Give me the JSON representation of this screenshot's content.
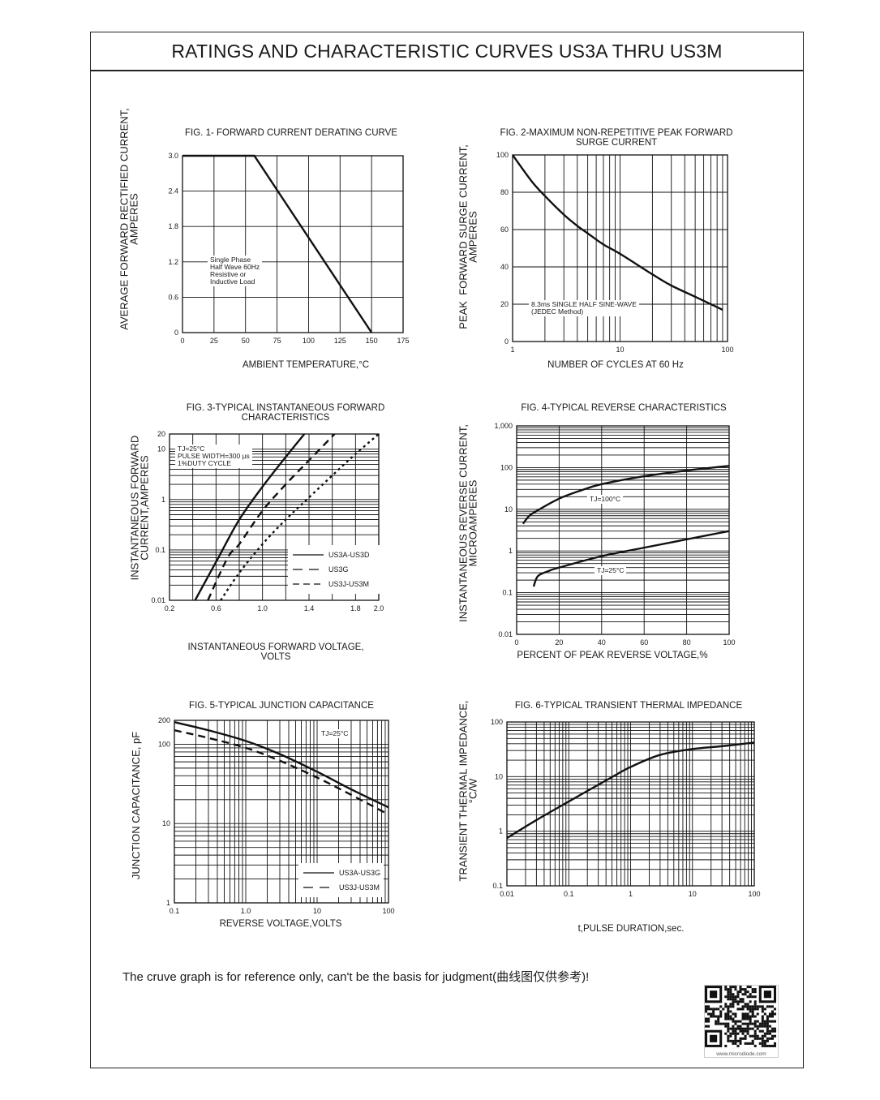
{
  "page": {
    "title": "RATINGS AND CHARACTERISTIC CURVES US3A THRU US3M",
    "footnote": "The cruve graph is for reference only, can't be the basis for judgment(曲线图仅供参考)!",
    "qr_url": "www.microdiode.com"
  },
  "chart_data": [
    {
      "type": "line",
      "title": "FIG. 1- FORWARD CURRENT DERATING CURVE",
      "xlabel": "AMBIENT TEMPERATURE,°C",
      "ylabel": "AVERAGE FORWARD RECTIFIED CURRENT,\nAMPERES",
      "xscale": "linear",
      "yscale": "linear",
      "xlim": [
        0,
        175
      ],
      "ylim": [
        0,
        3.0
      ],
      "xgrid_step": 25,
      "ygrid_step": 0.6,
      "xticks": [
        [
          0,
          "0"
        ],
        [
          25,
          "25"
        ],
        [
          50,
          "50"
        ],
        [
          75,
          "75"
        ],
        [
          100,
          "100"
        ],
        [
          125,
          "125"
        ],
        [
          150,
          "150"
        ],
        [
          175,
          "175"
        ]
      ],
      "yticks": [
        [
          0,
          "0"
        ],
        [
          0.6,
          "0.6"
        ],
        [
          1.2,
          "1.2"
        ],
        [
          1.8,
          "1.8"
        ],
        [
          2.4,
          "2.4"
        ],
        [
          3.0,
          "3.0"
        ]
      ],
      "grid": true,
      "series": [
        {
          "style": "solid",
          "points": [
            [
              0,
              3.0
            ],
            [
              57,
              3.0
            ],
            [
              150,
              0
            ]
          ]
        }
      ],
      "annotations": [
        "Single Phase\nHalf Wave 60Hz\nResistive or\nInductive Load"
      ]
    },
    {
      "type": "line",
      "title": "FIG. 2-MAXIMUM NON-REPETITIVE PEAK FORWARD\nSURGE CURRENT",
      "xlabel": "NUMBER OF CYCLES AT 60 Hz",
      "ylabel": "PEAK  FORWARD SURGE CURRENT,\nAMPERES",
      "xscale": "log",
      "yscale": "linear",
      "xlim": [
        1,
        100
      ],
      "ylim": [
        0,
        100
      ],
      "ygrid_step": 20,
      "xticks": [
        [
          1,
          "1"
        ],
        [
          10,
          "10"
        ],
        [
          100,
          "100"
        ]
      ],
      "yticks": [
        [
          0,
          "0"
        ],
        [
          20,
          "20"
        ],
        [
          40,
          "40"
        ],
        [
          60,
          "60"
        ],
        [
          80,
          "80"
        ],
        [
          100,
          "100"
        ]
      ],
      "grid": true,
      "series": [
        {
          "style": "solid",
          "points": [
            [
              1,
              100
            ],
            [
              1.5,
              86
            ],
            [
              2,
              78
            ],
            [
              3,
              68
            ],
            [
              4,
              62
            ],
            [
              5,
              58
            ],
            [
              7,
              52
            ],
            [
              10,
              47
            ],
            [
              20,
              36
            ],
            [
              30,
              30
            ],
            [
              50,
              24
            ],
            [
              70,
              20
            ],
            [
              90,
              17
            ]
          ]
        }
      ],
      "annotations": [
        "8.3ms SINGLE HALF SINE-WAVE\n(JEDEC Method)"
      ]
    },
    {
      "type": "line",
      "title": "FIG. 3-TYPICAL INSTANTANEOUS FORWARD\nCHARACTERISTICS",
      "xlabel": "INSTANTANEOUS FORWARD VOLTAGE,\nVOLTS",
      "ylabel": "INSTANTANEOUS FORWARD\nCURRENT,AMPERES",
      "xscale": "linear",
      "yscale": "log",
      "xlim": [
        0.2,
        2.0
      ],
      "ylim": [
        0.01,
        20
      ],
      "xgrid_step": 0.2,
      "xticks": [
        [
          0.2,
          "0.2"
        ],
        [
          0.6,
          "0.6"
        ],
        [
          1.0,
          "1.0"
        ],
        [
          1.4,
          "1.4"
        ],
        [
          1.8,
          "1.8"
        ],
        [
          2.0,
          "2.0"
        ]
      ],
      "yticks": [
        [
          0.01,
          "0.01"
        ],
        [
          0.1,
          "0.1"
        ],
        [
          1,
          "1"
        ],
        [
          10,
          "10"
        ],
        [
          20,
          "20"
        ]
      ],
      "grid": true,
      "legend": "bottom-right",
      "series": [
        {
          "name": "US3A-US3D",
          "style": "solid",
          "points": [
            [
              0.42,
              0.01
            ],
            [
              0.62,
              0.07
            ],
            [
              0.8,
              0.4
            ],
            [
              1.0,
              1.8
            ],
            [
              1.2,
              7
            ],
            [
              1.36,
              20
            ]
          ]
        },
        {
          "name": "US3G",
          "style": "dashed",
          "points": [
            [
              0.53,
              0.01
            ],
            [
              0.7,
              0.07
            ],
            [
              0.8,
              0.13
            ],
            [
              1.0,
              0.6
            ],
            [
              1.2,
              2
            ],
            [
              1.4,
              6
            ],
            [
              1.62,
              20
            ]
          ]
        },
        {
          "name": "US3J-US3M",
          "style": "dotted",
          "points": [
            [
              0.64,
              0.01
            ],
            [
              0.8,
              0.035
            ],
            [
              1.0,
              0.13
            ],
            [
              1.2,
              0.4
            ],
            [
              1.4,
              1.1
            ],
            [
              1.6,
              3
            ],
            [
              1.8,
              8
            ],
            [
              2.0,
              20
            ]
          ]
        }
      ],
      "annotations": [
        "TJ=25°C\nPULSE WIDTH=300 µs\n1%DUTY CYCLE"
      ]
    },
    {
      "type": "line",
      "title": "FIG. 4-TYPICAL REVERSE CHARACTERISTICS",
      "xlabel": "PERCENT OF PEAK REVERSE VOLTAGE,%",
      "ylabel": "INSTANTANEOUS REVERSE CURRENT,\nMICROAMPERES",
      "xscale": "linear",
      "yscale": "log",
      "xlim": [
        0,
        100
      ],
      "ylim": [
        0.01,
        1000
      ],
      "xgrid_step": 20,
      "xticks": [
        [
          0,
          "0"
        ],
        [
          20,
          "20"
        ],
        [
          40,
          "40"
        ],
        [
          60,
          "60"
        ],
        [
          80,
          "80"
        ],
        [
          100,
          "100"
        ]
      ],
      "yticks": [
        [
          0.01,
          "0.01"
        ],
        [
          0.1,
          "0.1"
        ],
        [
          1,
          "1"
        ],
        [
          10,
          "10"
        ],
        [
          100,
          "100"
        ],
        [
          1000,
          "1,000"
        ]
      ],
      "grid": true,
      "series": [
        {
          "name": "TJ=100°C",
          "style": "solid",
          "points": [
            [
              3,
              4.5
            ],
            [
              6,
              7
            ],
            [
              10,
              9.5
            ],
            [
              20,
              18
            ],
            [
              30,
              28
            ],
            [
              40,
              40
            ],
            [
              60,
              62
            ],
            [
              80,
              85
            ],
            [
              100,
              110
            ]
          ]
        },
        {
          "name": "TJ=25°C",
          "style": "solid",
          "points": [
            [
              8,
              0.14
            ],
            [
              10,
              0.25
            ],
            [
              15,
              0.33
            ],
            [
              20,
              0.4
            ],
            [
              40,
              0.75
            ],
            [
              60,
              1.2
            ],
            [
              80,
              1.9
            ],
            [
              100,
              3
            ]
          ]
        }
      ],
      "annotations": [
        "TJ=100°C",
        "TJ=25°C"
      ]
    },
    {
      "type": "line",
      "title": "FIG. 5-TYPICAL JUNCTION CAPACITANCE",
      "xlabel": "REVERSE VOLTAGE,VOLTS",
      "ylabel": "JUNCTION CAPACITANCE, pF",
      "xscale": "log",
      "yscale": "log",
      "xlim": [
        0.1,
        100
      ],
      "ylim": [
        1,
        200
      ],
      "xticks": [
        [
          0.1,
          "0.1"
        ],
        [
          1,
          "1.0"
        ],
        [
          10,
          "10"
        ],
        [
          100,
          "100"
        ]
      ],
      "yticks": [
        [
          1,
          "1"
        ],
        [
          10,
          "10"
        ],
        [
          100,
          "100"
        ],
        [
          200,
          "200"
        ]
      ],
      "grid": true,
      "legend": "bottom-right",
      "series": [
        {
          "name": "US3A-US3G",
          "style": "solid",
          "points": [
            [
              0.1,
              190
            ],
            [
              0.3,
              150
            ],
            [
              1,
              110
            ],
            [
              3,
              75
            ],
            [
              10,
              45
            ],
            [
              30,
              27
            ],
            [
              100,
              16
            ]
          ]
        },
        {
          "name": "US3J-US3M",
          "style": "dashed",
          "points": [
            [
              0.1,
              150
            ],
            [
              0.3,
              120
            ],
            [
              1,
              90
            ],
            [
              3,
              62
            ],
            [
              10,
              38
            ],
            [
              30,
              23
            ],
            [
              100,
              13
            ]
          ]
        }
      ],
      "annotations": [
        "TJ=25°C"
      ]
    },
    {
      "type": "line",
      "title": "FIG. 6-TYPICAL TRANSIENT THERMAL IMPEDANCE",
      "xlabel": "t,PULSE DURATION,sec.",
      "ylabel": "TRANSIENT THERMAL IMPEDANCE,\n°C/W",
      "xscale": "log",
      "yscale": "log",
      "xlim": [
        0.01,
        100
      ],
      "ylim": [
        0.1,
        100
      ],
      "xticks": [
        [
          0.01,
          "0.01"
        ],
        [
          0.1,
          "0.1"
        ],
        [
          1,
          "1"
        ],
        [
          10,
          "10"
        ],
        [
          100,
          "100"
        ]
      ],
      "yticks": [
        [
          0.1,
          "0.1"
        ],
        [
          1,
          "1"
        ],
        [
          10,
          "10"
        ],
        [
          100,
          "100"
        ]
      ],
      "grid": true,
      "series": [
        {
          "style": "solid",
          "points": [
            [
              0.01,
              0.75
            ],
            [
              0.03,
              1.6
            ],
            [
              0.1,
              3.5
            ],
            [
              0.4,
              8.5
            ],
            [
              1,
              15
            ],
            [
              3,
              25
            ],
            [
              10,
              32
            ],
            [
              30,
              36
            ],
            [
              100,
              42
            ]
          ]
        }
      ],
      "annotations": []
    }
  ]
}
